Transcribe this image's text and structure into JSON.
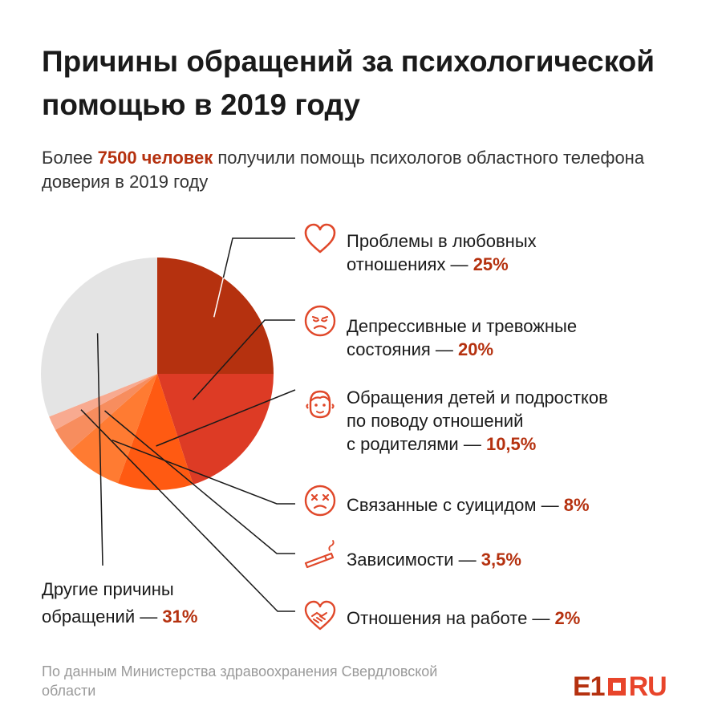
{
  "title": "Причины обращений за психологической помощью в 2019 году",
  "subtitle": {
    "before": "Более ",
    "highlight": "7500 человек",
    "after": " получили помощь психологов областного телефона доверия в 2019 году"
  },
  "chart_data": {
    "type": "pie",
    "title": "Причины обращений за психологической помощью в 2019 году",
    "categories": [
      "Проблемы в любовных отношениях",
      "Депрессивные и тревожные состояния",
      "Обращения детей и подростков по поводу отношений с родителями",
      "Связанные с суицидом",
      "Зависимости",
      "Отношения на работе",
      "Другие причины обращений"
    ],
    "values": [
      25,
      20,
      10.5,
      8,
      3.5,
      2,
      31
    ],
    "unit": "%"
  },
  "legend": [
    {
      "text_before": "Проблемы в любовных",
      "text_line2": "отношениях — ",
      "pct": "25%",
      "icon": "heart-icon"
    },
    {
      "text_before": "Депрессивные и тревожные",
      "text_line2": "состояния — ",
      "pct": "20%",
      "icon": "sad-face-icon"
    },
    {
      "text_before": "Обращения детей и подростков",
      "text_mid": "по поводу отношений",
      "text_line2": "с родителями — ",
      "pct": "10,5%",
      "icon": "child-face-icon"
    },
    {
      "text_line2": "Связанные с суицидом — ",
      "pct": "8%",
      "icon": "dead-face-icon"
    },
    {
      "text_line2": "Зависимости — ",
      "pct": "3,5%",
      "icon": "cigarette-icon"
    },
    {
      "text_line2": "Отношения на работе — ",
      "pct": "2%",
      "icon": "handshake-icon"
    }
  ],
  "other": {
    "line1": "Другие причины",
    "line2": "обращений — ",
    "pct": "31%"
  },
  "source": "По данным Министерства здравоохранения Свердловской области",
  "logo": {
    "e1": "E1",
    "ru": "RU"
  },
  "colors": {
    "accent": "#b5310f",
    "slices": [
      "#b5310f",
      "#dd3b25",
      "#ff5a12",
      "#ff7b32",
      "#f78d5e",
      "#f8aa90",
      "#e4e4e4"
    ],
    "lines": "#1a1a1a",
    "icon": "#e0482a"
  }
}
